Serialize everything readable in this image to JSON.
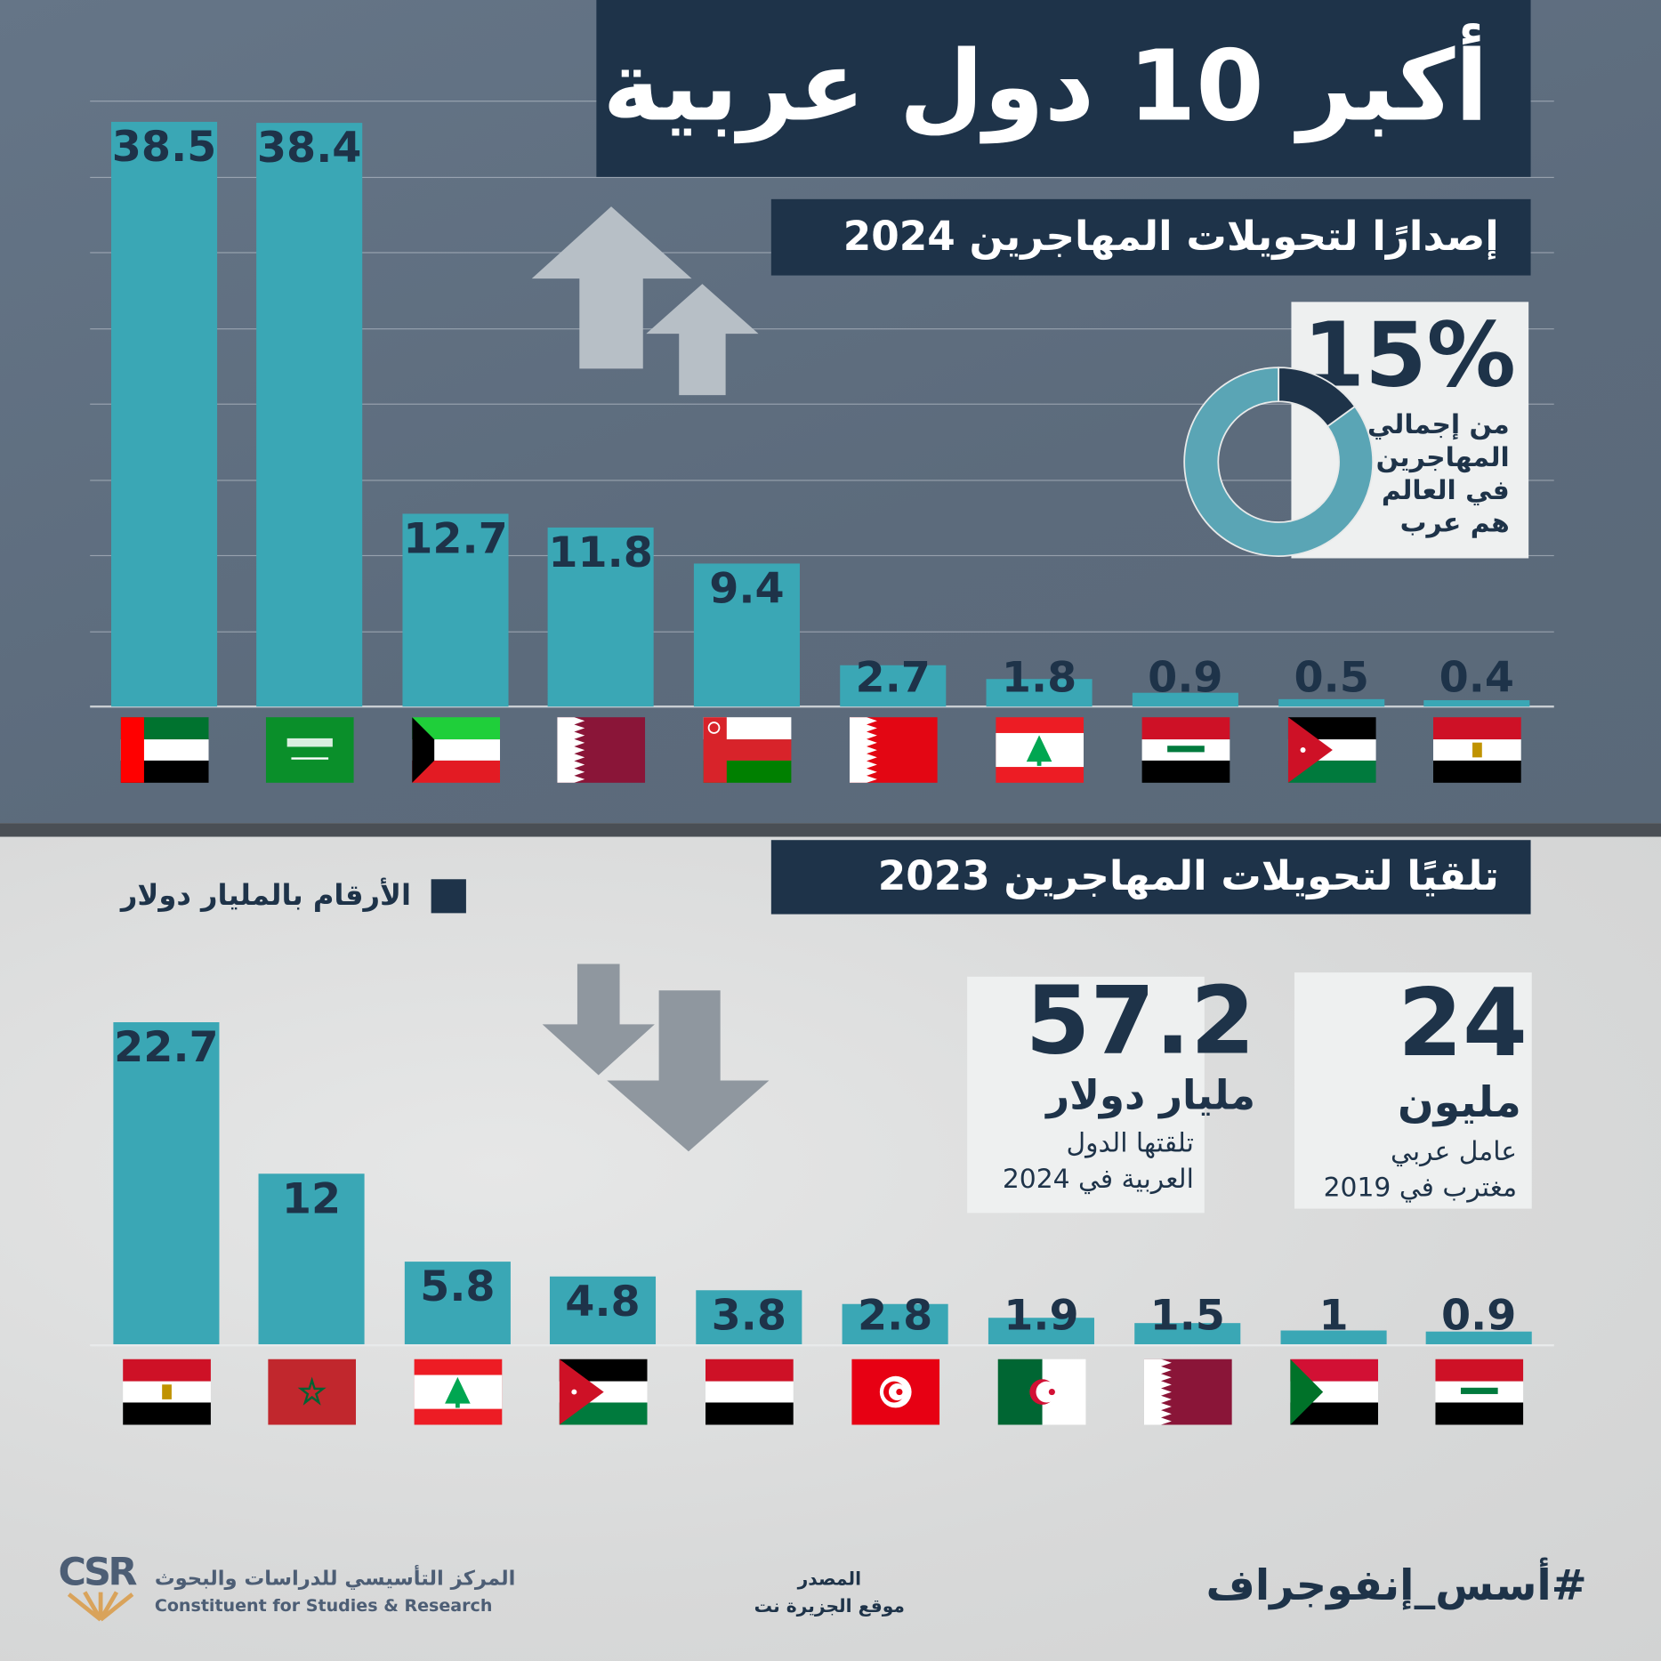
{
  "title": "أكبر 10 دول عربية",
  "top_section": {
    "subtitle": "إصدارًا لتحويلات المهاجرين 2024",
    "stat": {
      "value": "15%",
      "text_lines": [
        "من إجمالي",
        "المهاجرين",
        "في العالم",
        "هم عرب"
      ],
      "fraction": 0.15
    },
    "arrow_direction": "up"
  },
  "bottom_section": {
    "subtitle": "تلقيًا لتحويلات المهاجرين 2023",
    "legend_label": "الأرقام بالمليار دولار",
    "arrow_direction": "down",
    "stat_workers": {
      "value": "24",
      "unit": "مليون",
      "text_lines": [
        "عامل عربي",
        "مغترب في 2019"
      ]
    },
    "stat_received": {
      "value": "57.2",
      "unit": "مليار دولار",
      "text_lines": [
        "تلقتها الدول",
        "العربية في 2024"
      ]
    }
  },
  "footer": {
    "hashtag": "#أسس_إنفوجراف",
    "source_label": "المصدر",
    "source_value": "موقع الجزيرة نت",
    "logo_letters": "CSR",
    "org_name_ar": "المركز التأسيسي للدراسات والبحوث",
    "org_name_en": "Constituent for Studies & Research"
  },
  "colors": {
    "navy": "#1e3349",
    "bar": "#3aa7b5",
    "donut": "#5aa5b5",
    "top_bg": "#5d6d7e"
  },
  "chart_data": [
    {
      "type": "bar",
      "title": "إصدارًا لتحويلات المهاجرين 2024",
      "ylabel": "الأرقام بالمليار دولار",
      "categories": [
        "flag-uae",
        "flag-saudi-arabia",
        "flag-kuwait",
        "flag-qatar",
        "flag-oman",
        "flag-bahrain",
        "flag-lebanon",
        "flag-iraq",
        "flag-jordan",
        "flag-egypt"
      ],
      "values": [
        38.5,
        38.4,
        12.7,
        11.8,
        9.4,
        2.7,
        1.8,
        0.9,
        0.5,
        0.4
      ],
      "value_labels": [
        "38.5",
        "38.4",
        "12.7",
        "11.8",
        "9.4",
        "2.7",
        "1.8",
        "0.9",
        "0.5",
        "0.4"
      ],
      "grid": true
    },
    {
      "type": "bar",
      "title": "تلقيًا لتحويلات المهاجرين 2023",
      "ylabel": "الأرقام بالمليار دولار",
      "categories": [
        "flag-egypt",
        "flag-morocco",
        "flag-lebanon",
        "flag-jordan",
        "flag-yemen",
        "flag-tunisia",
        "flag-algeria",
        "flag-qatar",
        "flag-sudan",
        "flag-iraq"
      ],
      "values": [
        22.7,
        12,
        5.8,
        4.8,
        3.8,
        2.8,
        1.9,
        1.5,
        1,
        0.9
      ],
      "value_labels": [
        "22.7",
        "12",
        "5.8",
        "4.8",
        "3.8",
        "2.8",
        "1.9",
        "1.5",
        "1",
        "0.9"
      ],
      "grid": false
    }
  ]
}
